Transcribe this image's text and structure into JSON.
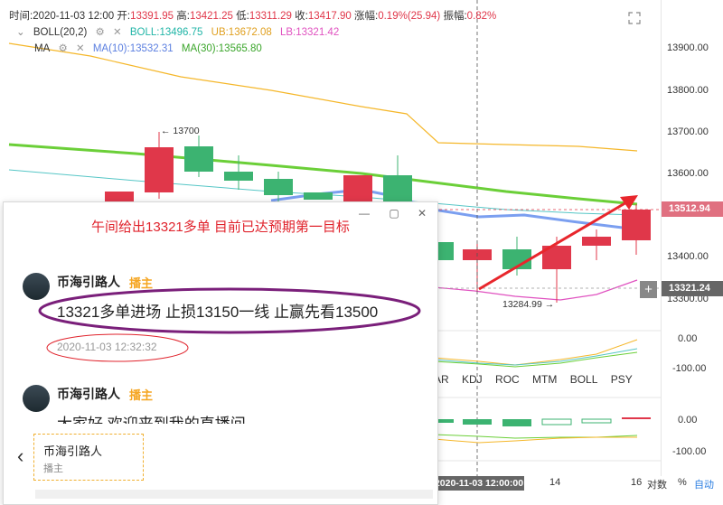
{
  "ohlc": {
    "time_label": "时间:",
    "time": "2020-11-03 12:00",
    "open_label": "开:",
    "open": "13391.95",
    "high_label": "高:",
    "high": "13421.25",
    "low_label": "低:",
    "low": "13311.29",
    "close_label": "收:",
    "close": "13417.90",
    "change_label": "涨幅:",
    "change": "0.19%(25.94)",
    "amp_label": "振幅:",
    "amp": "0.82%"
  },
  "boll": {
    "name": "BOLL(20,2)",
    "boll": "BOLL:13496.75",
    "ub": "UB:13672.08",
    "lb": "LB:13321.42"
  },
  "ma": {
    "name": "MA",
    "ma10": "MA(10):13532.31",
    "ma30": "MA(30):13565.80"
  },
  "price_axis": {
    "ticks": [
      "13900.00",
      "13800.00",
      "13700.00",
      "13600.00",
      "13500.00",
      "13400.00",
      "13300.00"
    ],
    "current_price": "13512.94",
    "lb_price": "13321.24",
    "sub1_ticks": [
      "0.00",
      "-100.00"
    ],
    "sub2_ticks": [
      "0.00",
      "-100.00"
    ]
  },
  "annotations": {
    "high_marker": "← 13700",
    "low_marker": "13284.99 →"
  },
  "indicator_tabs": [
    "AR",
    "KDJ",
    "ROC",
    "MTM",
    "BOLL",
    "PSY"
  ],
  "bottom_bar": {
    "time": "2020-11-03 12:00:00",
    "tick": "14",
    "tick2": "16",
    "log_label": "对数",
    "percent_label": "%",
    "auto_label": "自动"
  },
  "popup": {
    "title": "午间给出13321多单 目前已达预期第一目标",
    "messages": [
      {
        "user": "币海引路人",
        "role": "播主",
        "text": "13321多单进场 止损13150一线 止赢先看13500",
        "time": "2020-11-03 12:32:32"
      },
      {
        "user": "币海引路人",
        "role": "播主",
        "text": "大家好 欢迎来到我的直播间"
      }
    ],
    "speaker": {
      "name": "币海引路人",
      "role": "播主"
    }
  },
  "colors": {
    "up": "#e0374a",
    "down": "#3cb371",
    "boll": "#f5b72a",
    "lb": "#e052c0",
    "ma10": "#7b9ff0",
    "ma30": "#6bcf38"
  }
}
